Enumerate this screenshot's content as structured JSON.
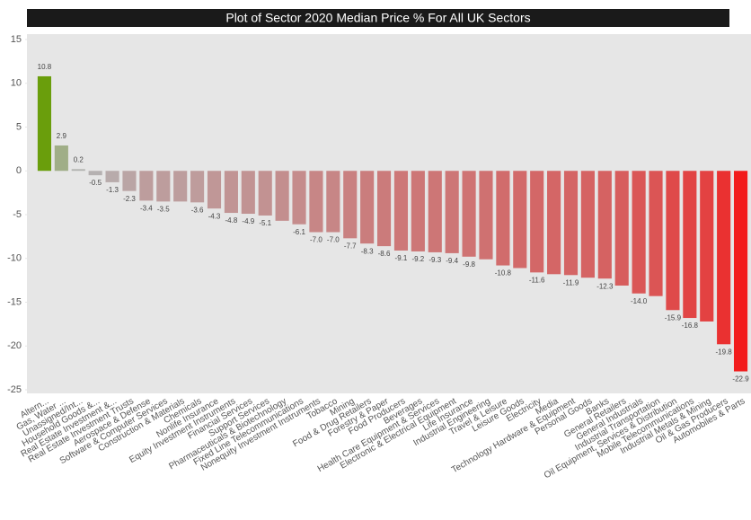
{
  "chart_data": {
    "type": "bar",
    "title": "Plot of Sector 2020 Median Price %  For All UK Sectors",
    "categories": [
      "Altern...",
      "Gas, Water ...",
      "Unassigned/Int...",
      "Household Goods &...",
      "Real Estate Investment &...",
      "Real Estate Investment Trusts",
      "Aerospace & Defense",
      "Software & Computer Services",
      "Construction & Materials",
      "Chemicals",
      "Nonlife Insurance",
      "Equity Investment Instruments",
      "Financial Services",
      "Support Services",
      "Pharmaceuticals & Biotechnology",
      "Fixed Line Telecommunications",
      "Nonequity Investment Instruments",
      "Tobacco",
      "Mining",
      "Food & Drug Retailers",
      "Forestry & Paper",
      "Food Producers",
      "Beverages",
      "Health Care Equipment & Services",
      "Electronic & Electrical Equipment",
      "Life Insurance",
      "Industrial Engineering",
      "Travel & Leisure",
      "Leisure Goods",
      "Electricity",
      "Media",
      "Technology Hardware & Equipment",
      "Personal Goods",
      "Banks",
      "General Retailers",
      "General Industrials",
      "Industrial Transportation",
      "Oil Equipment, Services & Distribution",
      "Mobile Telecommunications",
      "Industrial Metals & Mining",
      "Oil & Gas Producers",
      "Automobiles & Parts"
    ],
    "values": [
      10.8,
      2.9,
      0.2,
      -0.5,
      -1.3,
      -2.3,
      -3.4,
      -3.5,
      -3.5,
      -3.6,
      -4.3,
      -4.8,
      -4.9,
      -5.1,
      -5.7,
      -6.1,
      -7.0,
      -7.0,
      -7.7,
      -8.3,
      -8.6,
      -9.1,
      -9.2,
      -9.3,
      -9.4,
      -9.8,
      -10.1,
      -10.8,
      -11.1,
      -11.6,
      -11.8,
      -11.9,
      -12.2,
      -12.3,
      -13.1,
      -14.0,
      -14.3,
      -15.9,
      -16.8,
      -17.2,
      -19.8,
      -22.9
    ],
    "value_labels": [
      "10.8",
      "2.9",
      "0.2",
      "-0.5",
      "-1.3",
      "-2.3",
      "-3.4",
      "-3.5",
      null,
      "-3.6",
      "-4.3",
      "-4.8",
      "-4.9",
      "-5.1",
      null,
      "-6.1",
      "-7.0",
      "-7.0",
      "-7.7",
      "-8.3",
      "-8.6",
      "-9.1",
      "-9.2",
      "-9.3",
      "-9.4",
      "-9.8",
      null,
      "-10.8",
      null,
      "-11.6",
      null,
      "-11.9",
      null,
      "-12.3",
      null,
      "-14.0",
      null,
      "-15.9",
      "-16.8",
      null,
      "-19.8",
      "-22.9"
    ],
    "color_scale": {
      "max": "#6a9e0c",
      "mid": "#b4b4b4",
      "min": "#f21c1c"
    },
    "ylim": [
      -25,
      15
    ],
    "yticks": [
      -25,
      -20,
      -15,
      -10,
      -5,
      0,
      5,
      10,
      15
    ]
  }
}
